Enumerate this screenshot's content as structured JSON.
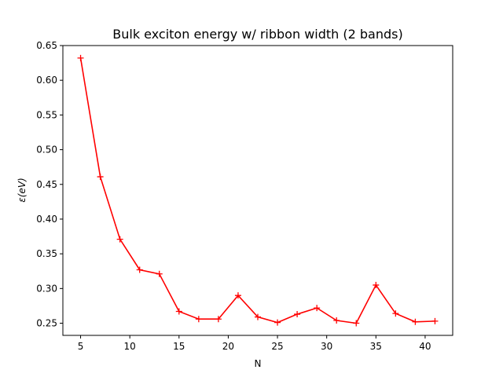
{
  "chart_data": {
    "type": "line",
    "title": "Bulk exciton energy w/ ribbon width (2 bands)",
    "xlabel": "N",
    "ylabel": "ε(eV)",
    "xlim": [
      3.2,
      42.8
    ],
    "ylim": [
      0.2325,
      0.65
    ],
    "xticks": [
      5,
      10,
      15,
      20,
      25,
      30,
      35,
      40
    ],
    "yticks": [
      0.25,
      0.3,
      0.35,
      0.4,
      0.45,
      0.5,
      0.55,
      0.6,
      0.65
    ],
    "xtick_labels": [
      "5",
      "10",
      "15",
      "20",
      "25",
      "30",
      "35",
      "40"
    ],
    "ytick_labels": [
      "0.25",
      "0.30",
      "0.35",
      "0.40",
      "0.45",
      "0.50",
      "0.55",
      "0.60",
      "0.65"
    ],
    "grid": false,
    "marker": "+",
    "color": "#ff0000",
    "series": [
      {
        "x": [
          5,
          7,
          9,
          11,
          13,
          15,
          17,
          19,
          21,
          23,
          25,
          27,
          29,
          31,
          33,
          35,
          37,
          39,
          41
        ],
        "y": [
          0.632,
          0.461,
          0.371,
          0.327,
          0.321,
          0.267,
          0.256,
          0.256,
          0.29,
          0.259,
          0.251,
          0.263,
          0.272,
          0.254,
          0.25,
          0.305,
          0.264,
          0.252,
          0.253
        ]
      }
    ]
  }
}
